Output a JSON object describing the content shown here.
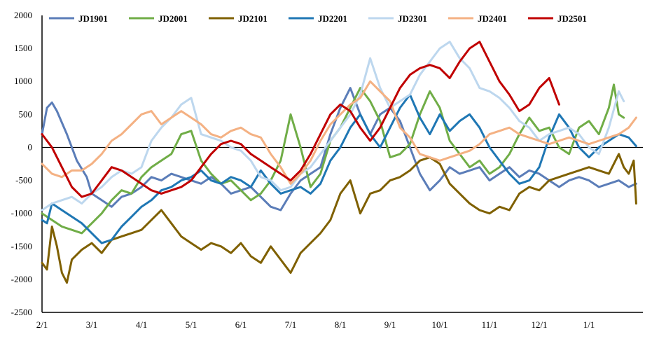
{
  "chart_data": {
    "type": "line",
    "title": "",
    "xlabel": "",
    "ylabel": "",
    "ylim": [
      -2500,
      2000
    ],
    "yticks": [
      -2500,
      -2000,
      -1500,
      -1000,
      -500,
      0,
      500,
      1000,
      1500,
      2000
    ],
    "x_tick_labels": [
      "2/1",
      "3/1",
      "4/1",
      "5/1",
      "6/1",
      "7/1",
      "8/1",
      "9/1",
      "10/1",
      "11/1",
      "12/1",
      "1/1"
    ],
    "x_range_months": [
      0,
      12.0
    ],
    "legend_position": "top",
    "grid": false,
    "zero_line": true,
    "series": [
      {
        "name": "JD1901",
        "color": "#5B7DB8",
        "x": [
          0,
          0.1,
          0.2,
          0.3,
          0.5,
          0.7,
          0.9,
          1.0,
          1.2,
          1.4,
          1.6,
          1.8,
          2.0,
          2.2,
          2.4,
          2.6,
          2.8,
          3.0,
          3.2,
          3.4,
          3.6,
          3.8,
          4.0,
          4.2,
          4.4,
          4.6,
          4.8,
          5.0,
          5.2,
          5.4,
          5.6,
          5.8,
          6.0,
          6.2,
          6.4,
          6.6,
          6.8,
          7.0,
          7.2,
          7.4,
          7.6,
          7.8,
          8.0,
          8.2,
          8.4,
          8.6,
          8.8,
          9.0,
          9.2,
          9.4,
          9.6,
          9.8,
          10.0,
          10.2,
          10.4,
          10.6,
          10.8,
          11.0,
          11.2,
          11.4,
          11.6,
          11.8,
          11.95
        ],
        "y": [
          200,
          600,
          680,
          550,
          200,
          -200,
          -450,
          -700,
          -800,
          -900,
          -750,
          -700,
          -600,
          -450,
          -500,
          -400,
          -450,
          -500,
          -550,
          -450,
          -550,
          -700,
          -650,
          -600,
          -750,
          -900,
          -950,
          -700,
          -500,
          -400,
          -300,
          200,
          600,
          900,
          500,
          200,
          500,
          600,
          400,
          0,
          -400,
          -650,
          -500,
          -300,
          -400,
          -350,
          -300,
          -500,
          -400,
          -300,
          -450,
          -350,
          -400,
          -500,
          -600,
          -500,
          -450,
          -500,
          -600,
          -550,
          -500,
          -600,
          -550
        ]
      },
      {
        "name": "JD2001",
        "color": "#70AD47",
        "x": [
          0,
          0.2,
          0.4,
          0.6,
          0.8,
          1.0,
          1.2,
          1.4,
          1.6,
          1.8,
          2.0,
          2.2,
          2.4,
          2.6,
          2.8,
          3.0,
          3.2,
          3.4,
          3.6,
          3.8,
          4.0,
          4.2,
          4.4,
          4.6,
          4.8,
          5.0,
          5.2,
          5.4,
          5.6,
          5.8,
          6.0,
          6.2,
          6.4,
          6.6,
          6.8,
          7.0,
          7.2,
          7.4,
          7.6,
          7.8,
          8.0,
          8.2,
          8.4,
          8.6,
          8.8,
          9.0,
          9.2,
          9.4,
          9.6,
          9.8,
          10.0,
          10.2,
          10.4,
          10.6,
          10.8,
          11.0,
          11.2,
          11.4,
          11.5,
          11.6,
          11.7
        ],
        "y": [
          -1000,
          -1100,
          -1200,
          -1250,
          -1300,
          -1150,
          -1000,
          -800,
          -650,
          -700,
          -450,
          -300,
          -200,
          -100,
          200,
          250,
          -200,
          -400,
          -550,
          -500,
          -650,
          -800,
          -700,
          -500,
          -200,
          500,
          0,
          -600,
          -400,
          100,
          300,
          600,
          900,
          700,
          400,
          -150,
          -100,
          50,
          500,
          850,
          600,
          100,
          -100,
          -300,
          -200,
          -400,
          -300,
          -100,
          200,
          450,
          250,
          300,
          0,
          -100,
          300,
          400,
          200,
          600,
          950,
          500,
          450
        ]
      },
      {
        "name": "JD2101",
        "color": "#7F6000",
        "x": [
          0,
          0.1,
          0.2,
          0.3,
          0.4,
          0.5,
          0.6,
          0.8,
          1.0,
          1.2,
          1.4,
          1.6,
          1.8,
          2.0,
          2.2,
          2.4,
          2.6,
          2.8,
          3.0,
          3.2,
          3.4,
          3.6,
          3.8,
          4.0,
          4.2,
          4.4,
          4.6,
          4.8,
          5.0,
          5.2,
          5.4,
          5.6,
          5.8,
          6.0,
          6.2,
          6.4,
          6.6,
          6.8,
          7.0,
          7.2,
          7.4,
          7.6,
          7.8,
          8.0,
          8.2,
          8.4,
          8.6,
          8.8,
          9.0,
          9.2,
          9.4,
          9.6,
          9.8,
          10.0,
          10.2,
          10.4,
          10.6,
          10.8,
          11.0,
          11.2,
          11.4,
          11.6,
          11.7,
          11.8,
          11.9,
          11.95
        ],
        "y": [
          -1750,
          -1850,
          -1200,
          -1500,
          -1900,
          -2050,
          -1700,
          -1550,
          -1450,
          -1600,
          -1400,
          -1350,
          -1300,
          -1250,
          -1100,
          -950,
          -1150,
          -1350,
          -1450,
          -1550,
          -1450,
          -1500,
          -1600,
          -1450,
          -1650,
          -1750,
          -1500,
          -1700,
          -1900,
          -1600,
          -1450,
          -1300,
          -1100,
          -700,
          -500,
          -1000,
          -700,
          -650,
          -500,
          -450,
          -350,
          -200,
          -150,
          -250,
          -550,
          -700,
          -850,
          -950,
          -1000,
          -900,
          -950,
          -700,
          -600,
          -650,
          -500,
          -450,
          -400,
          -350,
          -300,
          -350,
          -400,
          -100,
          -300,
          -400,
          -200,
          -850
        ]
      },
      {
        "name": "JD2201",
        "color": "#1F77B4",
        "x": [
          0,
          0.1,
          0.2,
          0.4,
          0.6,
          0.8,
          1.0,
          1.2,
          1.4,
          1.6,
          1.8,
          2.0,
          2.2,
          2.4,
          2.6,
          2.8,
          3.0,
          3.2,
          3.4,
          3.6,
          3.8,
          4.0,
          4.2,
          4.4,
          4.6,
          4.8,
          5.0,
          5.2,
          5.4,
          5.6,
          5.8,
          6.0,
          6.2,
          6.4,
          6.6,
          6.8,
          7.0,
          7.2,
          7.4,
          7.6,
          7.8,
          8.0,
          8.2,
          8.4,
          8.6,
          8.8,
          9.0,
          9.2,
          9.4,
          9.6,
          9.8,
          10.0,
          10.2,
          10.4,
          10.6,
          10.8,
          11.0,
          11.2,
          11.4,
          11.6,
          11.8,
          11.95
        ],
        "y": [
          -1100,
          -1150,
          -850,
          -950,
          -1050,
          -1150,
          -1300,
          -1450,
          -1400,
          -1200,
          -1050,
          -900,
          -800,
          -650,
          -600,
          -500,
          -450,
          -350,
          -500,
          -550,
          -450,
          -500,
          -600,
          -350,
          -550,
          -700,
          -650,
          -600,
          -700,
          -550,
          -200,
          0,
          300,
          500,
          200,
          0,
          300,
          600,
          800,
          450,
          200,
          500,
          250,
          400,
          500,
          300,
          0,
          -200,
          -400,
          -550,
          -500,
          -300,
          150,
          500,
          300,
          0,
          -150,
          0,
          100,
          200,
          150,
          20
        ]
      },
      {
        "name": "JD2301",
        "color": "#BDD7EE",
        "x": [
          0,
          0.2,
          0.4,
          0.6,
          0.8,
          1.0,
          1.2,
          1.4,
          1.6,
          1.8,
          2.0,
          2.2,
          2.4,
          2.6,
          2.8,
          3.0,
          3.2,
          3.4,
          3.6,
          3.8,
          4.0,
          4.2,
          4.4,
          4.6,
          4.8,
          5.0,
          5.2,
          5.4,
          5.6,
          5.8,
          6.0,
          6.2,
          6.4,
          6.6,
          6.8,
          7.0,
          7.2,
          7.4,
          7.6,
          7.8,
          8.0,
          8.2,
          8.4,
          8.6,
          8.8,
          9.0,
          9.2,
          9.4,
          9.6,
          9.8,
          10.0,
          10.2,
          10.4,
          10.6,
          10.8,
          11.0,
          11.2,
          11.4,
          11.6,
          11.7
        ],
        "y": [
          -950,
          -850,
          -800,
          -750,
          -850,
          -700,
          -600,
          -450,
          -350,
          -400,
          -300,
          100,
          300,
          450,
          650,
          750,
          200,
          150,
          100,
          0,
          -50,
          -200,
          -450,
          -500,
          -650,
          -600,
          -400,
          -300,
          -100,
          100,
          300,
          500,
          800,
          1350,
          900,
          600,
          700,
          800,
          1100,
          1300,
          1500,
          1600,
          1350,
          1200,
          900,
          850,
          750,
          600,
          400,
          300,
          100,
          200,
          250,
          300,
          200,
          0,
          -100,
          300,
          850,
          700
        ]
      },
      {
        "name": "JD2401",
        "color": "#F4B183",
        "x": [
          0,
          0.2,
          0.4,
          0.6,
          0.8,
          1.0,
          1.2,
          1.4,
          1.6,
          1.8,
          2.0,
          2.2,
          2.4,
          2.6,
          2.8,
          3.0,
          3.2,
          3.4,
          3.6,
          3.8,
          4.0,
          4.2,
          4.4,
          4.6,
          4.8,
          5.0,
          5.2,
          5.4,
          5.6,
          5.8,
          6.0,
          6.2,
          6.4,
          6.6,
          6.8,
          7.0,
          7.2,
          7.4,
          7.6,
          7.8,
          8.0,
          8.2,
          8.4,
          8.6,
          8.8,
          9.0,
          9.2,
          9.4,
          9.6,
          9.8,
          10.0,
          10.2,
          10.4,
          10.6,
          10.8,
          11.0,
          11.2,
          11.4,
          11.6,
          11.8,
          11.95
        ],
        "y": [
          -250,
          -400,
          -450,
          -350,
          -350,
          -250,
          -100,
          100,
          200,
          350,
          500,
          550,
          350,
          450,
          550,
          450,
          350,
          200,
          150,
          250,
          300,
          200,
          150,
          -100,
          -300,
          -550,
          -400,
          -200,
          100,
          350,
          500,
          650,
          750,
          1000,
          850,
          700,
          300,
          150,
          -100,
          -150,
          -200,
          -150,
          -100,
          -50,
          50,
          200,
          250,
          300,
          200,
          150,
          100,
          50,
          100,
          150,
          100,
          50,
          100,
          150,
          200,
          300,
          450
        ]
      },
      {
        "name": "JD2501",
        "color": "#C00000",
        "x": [
          0,
          0.2,
          0.4,
          0.6,
          0.8,
          1.0,
          1.2,
          1.4,
          1.6,
          1.8,
          2.0,
          2.2,
          2.4,
          2.6,
          2.8,
          3.0,
          3.2,
          3.4,
          3.6,
          3.8,
          4.0,
          4.2,
          4.4,
          4.6,
          4.8,
          5.0,
          5.2,
          5.4,
          5.6,
          5.8,
          6.0,
          6.2,
          6.4,
          6.6,
          6.8,
          7.0,
          7.2,
          7.4,
          7.6,
          7.8,
          8.0,
          8.2,
          8.4,
          8.6,
          8.8,
          9.0,
          9.2,
          9.4,
          9.6,
          9.8,
          10.0,
          10.2,
          10.4
        ],
        "y": [
          200,
          0,
          -300,
          -600,
          -750,
          -700,
          -500,
          -300,
          -350,
          -450,
          -550,
          -650,
          -700,
          -650,
          -600,
          -500,
          -300,
          -100,
          50,
          100,
          50,
          -100,
          -200,
          -300,
          -400,
          -500,
          -350,
          -100,
          200,
          500,
          650,
          550,
          300,
          100,
          300,
          600,
          900,
          1100,
          1200,
          1250,
          1200,
          1050,
          1300,
          1500,
          1600,
          1300,
          1000,
          800,
          550,
          650,
          900,
          1050,
          650
        ]
      }
    ]
  }
}
